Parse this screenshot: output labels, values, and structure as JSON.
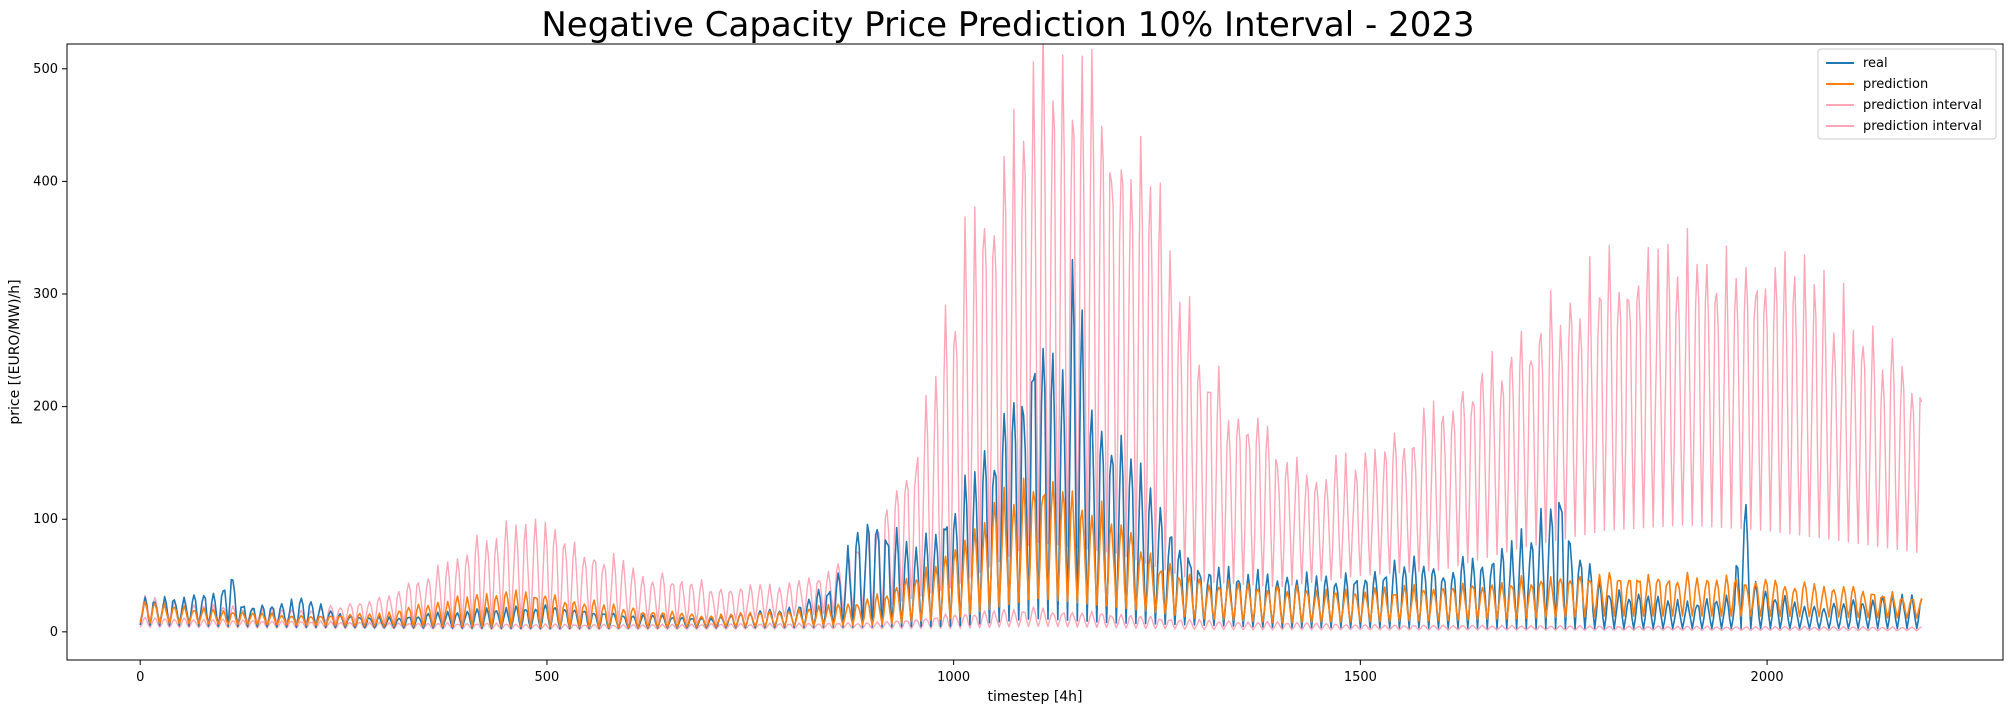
{
  "chart_data": {
    "type": "line",
    "title": "Negative Capacity Price Prediction 10% Interval - 2023",
    "xlabel": "timestep [4h]",
    "ylabel": "price [(EURO/MW)/h]",
    "xlim": [
      -90,
      2290
    ],
    "ylim": [
      -25,
      522
    ],
    "xticks": [
      0,
      500,
      1000,
      1500,
      2000
    ],
    "yticks": [
      0,
      100,
      200,
      300,
      400,
      500
    ],
    "grid": false,
    "legend_position": "top-right",
    "colors": {
      "real": "#1f77b4",
      "prediction": "#ff7f0e",
      "interval": "#ffa6b8"
    },
    "x_range": [
      0,
      2190
    ],
    "cycle_period_steps": 12,
    "series": [
      {
        "name": "real",
        "envelope_peak": [
          [
            0,
            28
          ],
          [
            50,
            30
          ],
          [
            100,
            35
          ],
          [
            110,
            62
          ],
          [
            120,
            25
          ],
          [
            160,
            22
          ],
          [
            200,
            28
          ],
          [
            250,
            15
          ],
          [
            300,
            12
          ],
          [
            400,
            18
          ],
          [
            500,
            22
          ],
          [
            600,
            15
          ],
          [
            700,
            12
          ],
          [
            800,
            20
          ],
          [
            850,
            40
          ],
          [
            880,
            85
          ],
          [
            900,
            100
          ],
          [
            950,
            70
          ],
          [
            1000,
            110
          ],
          [
            1050,
            160
          ],
          [
            1090,
            230
          ],
          [
            1110,
            275
          ],
          [
            1130,
            200
          ],
          [
            1150,
            335
          ],
          [
            1170,
            180
          ],
          [
            1200,
            175
          ],
          [
            1230,
            140
          ],
          [
            1260,
            100
          ],
          [
            1300,
            60
          ],
          [
            1400,
            45
          ],
          [
            1500,
            50
          ],
          [
            1560,
            60
          ],
          [
            1600,
            55
          ],
          [
            1680,
            70
          ],
          [
            1720,
            95
          ],
          [
            1745,
            130
          ],
          [
            1760,
            80
          ],
          [
            1800,
            35
          ],
          [
            1900,
            25
          ],
          [
            1960,
            30
          ],
          [
            1970,
            150
          ],
          [
            1985,
            40
          ],
          [
            2050,
            20
          ],
          [
            2100,
            25
          ],
          [
            2150,
            30
          ],
          [
            2190,
            30
          ]
        ],
        "envelope_base": [
          [
            0,
            6
          ],
          [
            200,
            4
          ],
          [
            500,
            3
          ],
          [
            800,
            4
          ],
          [
            1000,
            5
          ],
          [
            1100,
            12
          ],
          [
            1200,
            8
          ],
          [
            1400,
            4
          ],
          [
            1800,
            3
          ],
          [
            2000,
            3
          ],
          [
            2190,
            3
          ]
        ]
      },
      {
        "name": "prediction",
        "envelope_peak": [
          [
            0,
            25
          ],
          [
            100,
            18
          ],
          [
            200,
            14
          ],
          [
            300,
            16
          ],
          [
            400,
            30
          ],
          [
            460,
            35
          ],
          [
            500,
            32
          ],
          [
            600,
            20
          ],
          [
            700,
            14
          ],
          [
            800,
            18
          ],
          [
            900,
            28
          ],
          [
            1000,
            70
          ],
          [
            1050,
            110
          ],
          [
            1100,
            135
          ],
          [
            1150,
            120
          ],
          [
            1200,
            95
          ],
          [
            1250,
            60
          ],
          [
            1300,
            45
          ],
          [
            1400,
            38
          ],
          [
            1500,
            35
          ],
          [
            1600,
            40
          ],
          [
            1700,
            45
          ],
          [
            1800,
            50
          ],
          [
            1900,
            48
          ],
          [
            2000,
            45
          ],
          [
            2100,
            38
          ],
          [
            2190,
            30
          ]
        ],
        "envelope_base": [
          [
            0,
            8
          ],
          [
            300,
            5
          ],
          [
            600,
            4
          ],
          [
            900,
            6
          ],
          [
            1000,
            12
          ],
          [
            1100,
            30
          ],
          [
            1200,
            22
          ],
          [
            1300,
            12
          ],
          [
            1400,
            8
          ],
          [
            1600,
            10
          ],
          [
            1800,
            14
          ],
          [
            2000,
            14
          ],
          [
            2190,
            12
          ]
        ]
      },
      {
        "name": "prediction interval",
        "envelope_peak": [
          [
            0,
            30
          ],
          [
            100,
            22
          ],
          [
            200,
            18
          ],
          [
            300,
            30
          ],
          [
            380,
            60
          ],
          [
            430,
            85
          ],
          [
            480,
            90
          ],
          [
            520,
            85
          ],
          [
            600,
            55
          ],
          [
            700,
            40
          ],
          [
            800,
            40
          ],
          [
            850,
            55
          ],
          [
            900,
            90
          ],
          [
            950,
            150
          ],
          [
            1000,
            300
          ],
          [
            1050,
            400
          ],
          [
            1090,
            450
          ],
          [
            1130,
            500
          ],
          [
            1170,
            460
          ],
          [
            1210,
            430
          ],
          [
            1250,
            370
          ],
          [
            1300,
            250
          ],
          [
            1350,
            195
          ],
          [
            1400,
            165
          ],
          [
            1450,
            140
          ],
          [
            1500,
            150
          ],
          [
            1550,
            175
          ],
          [
            1600,
            200
          ],
          [
            1650,
            235
          ],
          [
            1700,
            260
          ],
          [
            1750,
            300
          ],
          [
            1800,
            315
          ],
          [
            1850,
            320
          ],
          [
            1900,
            325
          ],
          [
            1950,
            335
          ],
          [
            2000,
            325
          ],
          [
            2050,
            310
          ],
          [
            2100,
            280
          ],
          [
            2150,
            240
          ],
          [
            2190,
            225
          ]
        ],
        "envelope_base": [
          [
            0,
            10
          ],
          [
            300,
            8
          ],
          [
            500,
            10
          ],
          [
            700,
            8
          ],
          [
            900,
            20
          ],
          [
            1000,
            40
          ],
          [
            1100,
            80
          ],
          [
            1200,
            70
          ],
          [
            1300,
            45
          ],
          [
            1400,
            40
          ],
          [
            1500,
            50
          ],
          [
            1600,
            55
          ],
          [
            1700,
            75
          ],
          [
            1800,
            90
          ],
          [
            1900,
            95
          ],
          [
            2000,
            90
          ],
          [
            2100,
            80
          ],
          [
            2190,
            70
          ]
        ]
      },
      {
        "name": "prediction interval",
        "envelope_peak": [
          [
            0,
            12
          ],
          [
            300,
            8
          ],
          [
            600,
            6
          ],
          [
            900,
            8
          ],
          [
            1000,
            15
          ],
          [
            1100,
            20
          ],
          [
            1200,
            15
          ],
          [
            1300,
            10
          ],
          [
            1500,
            6
          ],
          [
            1800,
            5
          ],
          [
            2190,
            4
          ]
        ],
        "envelope_base": [
          [
            0,
            4
          ],
          [
            500,
            2
          ],
          [
            1000,
            3
          ],
          [
            1100,
            5
          ],
          [
            1300,
            2
          ],
          [
            2190,
            1
          ]
        ]
      }
    ]
  }
}
